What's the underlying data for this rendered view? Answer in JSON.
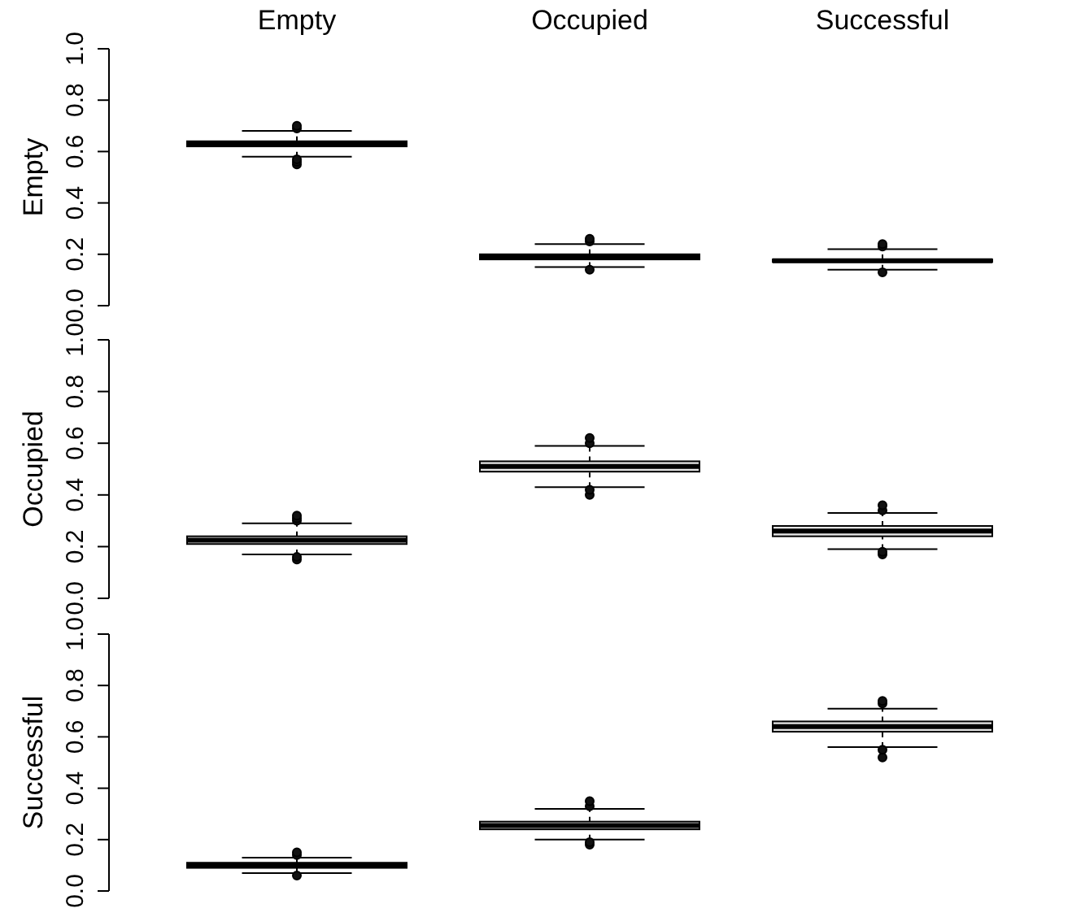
{
  "chart_data": [
    {
      "type": "box",
      "ylabel": "Empty",
      "categories": [
        "Empty",
        "Occupied",
        "Successful"
      ],
      "ylim": [
        0,
        1
      ],
      "yticks": [
        {
          "value": 0,
          "label": "0.0"
        },
        {
          "value": 0.2,
          "label": "0.2"
        },
        {
          "value": 0.4,
          "label": "0.4"
        },
        {
          "value": 0.6,
          "label": "0.6"
        },
        {
          "value": 0.8,
          "label": "0.8"
        },
        {
          "value": 1,
          "label": "1.0"
        }
      ],
      "boxes": [
        {
          "low": 0.58,
          "q1": 0.62,
          "median": 0.63,
          "q3": 0.64,
          "high": 0.68,
          "outliers": [
            0.55,
            0.56,
            0.57,
            0.69,
            0.7
          ]
        },
        {
          "low": 0.15,
          "q1": 0.18,
          "median": 0.19,
          "q3": 0.2,
          "high": 0.24,
          "outliers": [
            0.14,
            0.25,
            0.26
          ]
        },
        {
          "low": 0.14,
          "q1": 0.17,
          "median": 0.175,
          "q3": 0.18,
          "high": 0.22,
          "outliers": [
            0.13,
            0.23,
            0.24
          ]
        }
      ]
    },
    {
      "type": "box",
      "ylabel": "Occupied",
      "categories": [
        null,
        null,
        null
      ],
      "tick_labels": "y",
      "ylim": [
        0,
        1
      ],
      "yticks": [
        {
          "value": 0,
          "label": "0.0"
        },
        {
          "value": 0.2,
          "label": "0.2"
        },
        {
          "value": 0.4,
          "label": "0.4"
        },
        {
          "value": 0.6,
          "label": "0.6"
        },
        {
          "value": 0.8,
          "label": "0.8"
        },
        {
          "value": 1,
          "label": "1.0"
        }
      ],
      "boxes": [
        {
          "low": 0.17,
          "q1": 0.21,
          "median": 0.225,
          "q3": 0.24,
          "high": 0.29,
          "outliers": [
            0.15,
            0.16,
            0.3,
            0.31,
            0.32
          ]
        },
        {
          "low": 0.43,
          "q1": 0.49,
          "median": 0.51,
          "q3": 0.53,
          "high": 0.59,
          "outliers": [
            0.4,
            0.42,
            0.6,
            0.62
          ]
        },
        {
          "low": 0.19,
          "q1": 0.24,
          "median": 0.26,
          "q3": 0.28,
          "high": 0.33,
          "outliers": [
            0.17,
            0.18,
            0.34,
            0.36
          ]
        }
      ]
    },
    {
      "type": "box",
      "ylabel": "Successful",
      "categories": [
        null,
        null,
        null
      ],
      "tick_labels": "y",
      "ylim": [
        0,
        1
      ],
      "yticks": [
        {
          "value": 0,
          "label": "0.0"
        },
        {
          "value": 0.2,
          "label": "0.2"
        },
        {
          "value": 0.4,
          "label": "0.4"
        },
        {
          "value": 0.6,
          "label": "0.6"
        },
        {
          "value": 0.8,
          "label": "0.8"
        },
        {
          "value": 1,
          "label": "1.0"
        }
      ],
      "boxes": [
        {
          "low": 0.07,
          "q1": 0.09,
          "median": 0.1,
          "q3": 0.11,
          "high": 0.13,
          "outliers": [
            0.06,
            0.14,
            0.15
          ]
        },
        {
          "low": 0.2,
          "q1": 0.24,
          "median": 0.255,
          "q3": 0.27,
          "high": 0.32,
          "outliers": [
            0.18,
            0.19,
            0.33,
            0.35
          ]
        },
        {
          "low": 0.56,
          "q1": 0.62,
          "median": 0.64,
          "q3": 0.66,
          "high": 0.71,
          "outliers": [
            0.52,
            0.55,
            0.73,
            0.74
          ]
        }
      ]
    }
  ]
}
